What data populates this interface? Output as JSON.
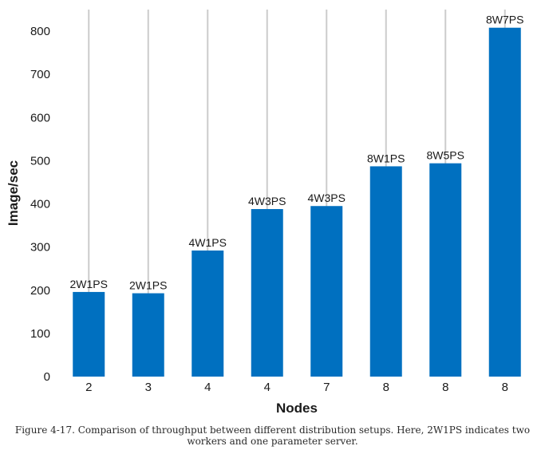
{
  "chart_data": {
    "type": "bar",
    "categories": [
      "2",
      "3",
      "4",
      "4",
      "7",
      "8",
      "8",
      "8"
    ],
    "values": [
      196,
      193,
      292,
      388,
      395,
      487,
      494,
      808
    ],
    "data_labels": [
      "2W1PS",
      "2W1PS",
      "4W1PS",
      "4W3PS",
      "4W3PS",
      "8W1PS",
      "8W5PS",
      "8W7PS"
    ],
    "title": "",
    "xlabel": "Nodes",
    "ylabel": "Image/sec",
    "ylim": [
      0,
      850
    ],
    "yticks": [
      0,
      100,
      200,
      300,
      400,
      500,
      600,
      700,
      800
    ],
    "grid": "vertical",
    "bar_color": "#0070c0",
    "grid_color": "#cccccc"
  },
  "caption": "Figure 4-17. Comparison of throughput between different distribution setups. Here, 2W1PS indicates two workers and one parameter server."
}
